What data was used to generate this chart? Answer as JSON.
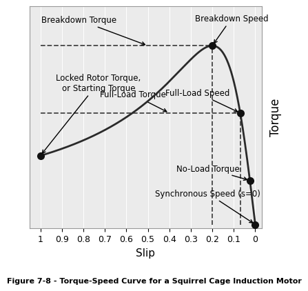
{
  "title": "Figure 7-8 - Torque-Speed Curve for a Squirrel Cage Induction Motor",
  "xlabel": "Slip",
  "ylabel": "Torque",
  "background_color": "#ebebeb",
  "curve_color": "#2a2a2a",
  "dashed_color": "#444444",
  "dot_color": "#111111",
  "breakdown_slip": 0.2,
  "breakdown_torque": 1.0,
  "locked_rotor_slip": 1.0,
  "full_load_slip": 0.07,
  "no_load_slip": 0.025,
  "sync_slip": 0.0,
  "s_breakdown": 0.2,
  "xticks": [
    1.0,
    0.9,
    0.8,
    0.7,
    0.6,
    0.5,
    0.4,
    0.3,
    0.2,
    0.1,
    0.0
  ],
  "xtick_labels": [
    "1",
    "0.9",
    "0.8",
    "0.7",
    "0.6",
    "0.5",
    "0.4",
    "0.3",
    "0.2",
    "0.1",
    "0"
  ]
}
